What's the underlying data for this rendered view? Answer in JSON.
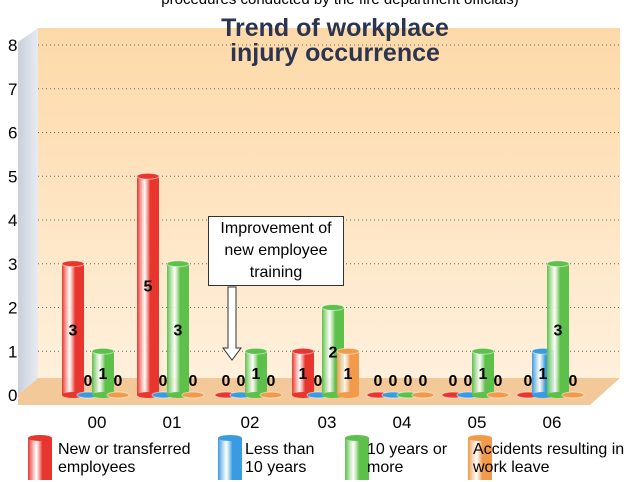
{
  "chart_data": {
    "type": "bar",
    "note": "procedures conducted by the fire department officials)",
    "title": "Trend of workplace injury occurrence",
    "annotation": "Improvement of new employee training",
    "categories": [
      "00",
      "01",
      "02",
      "03",
      "04",
      "05",
      "06"
    ],
    "series": [
      {
        "name": "New or transferred employees",
        "color": "#e8352e",
        "values": [
          3,
          5,
          0,
          1,
          0,
          0,
          0
        ]
      },
      {
        "name": "Less than 10 years",
        "color": "#3a9be0",
        "values": [
          0,
          0,
          0,
          0,
          0,
          0,
          1
        ]
      },
      {
        "name": "10 years or more",
        "color": "#5cc04a",
        "values": [
          1,
          3,
          1,
          2,
          0,
          1,
          3
        ]
      },
      {
        "name": "Accidents resulting in work leave",
        "color": "#f09a4a",
        "values": [
          0,
          0,
          0,
          1,
          0,
          0,
          0
        ]
      }
    ],
    "ylim": [
      0,
      8
    ],
    "yticks": [
      0,
      1,
      2,
      3,
      4,
      5,
      6,
      7,
      8
    ],
    "grid": true
  }
}
